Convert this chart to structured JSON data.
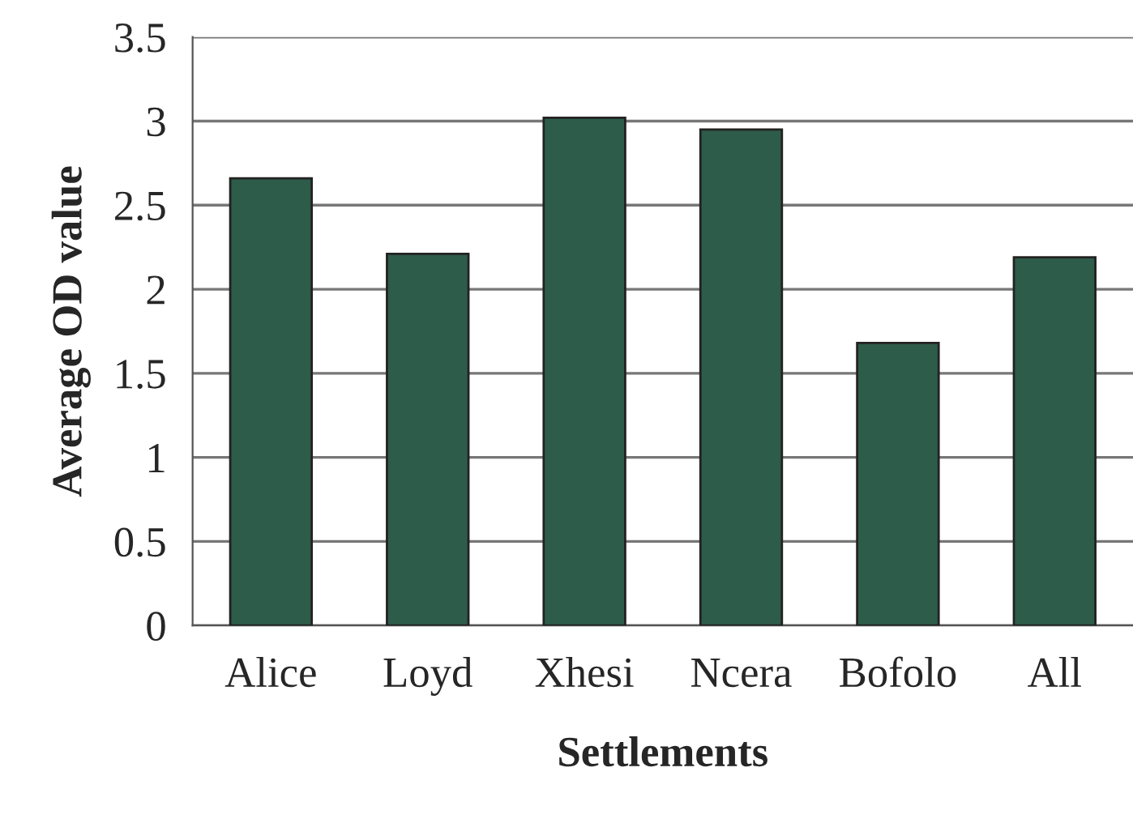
{
  "chart_data": {
    "type": "bar",
    "categories": [
      "Alice",
      "Loyd",
      "Xhesi",
      "Ncera",
      "Bofolo",
      "All"
    ],
    "values": [
      2.66,
      2.21,
      3.02,
      2.95,
      1.68,
      2.19
    ],
    "color": "#2e5c4a",
    "xlabel": "Settlements",
    "ylabel": "Average OD value",
    "ylim": [
      0,
      3.5
    ],
    "yticks": [
      0,
      0.5,
      1,
      1.5,
      2,
      2.5,
      3,
      3.5
    ],
    "grid": "y",
    "legend": false
  }
}
